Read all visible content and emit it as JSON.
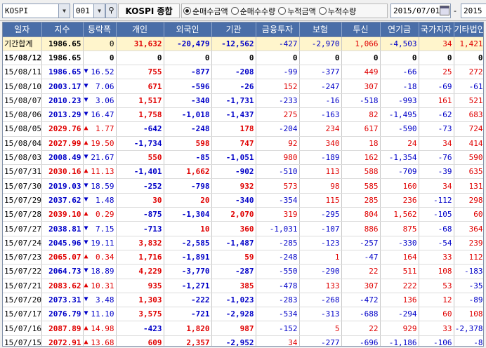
{
  "toolbar": {
    "market_combo": "KOSPI",
    "code_combo": "001",
    "market_name": "KOSPI 종합",
    "radios": [
      {
        "label": "순매수금액",
        "selected": true
      },
      {
        "label": "순매수수량",
        "selected": false
      },
      {
        "label": "누적금액",
        "selected": false
      },
      {
        "label": "누적수량",
        "selected": false
      }
    ],
    "date_from": "2015/07/01",
    "date_sep": "-",
    "date_to": "2015"
  },
  "columns": [
    "일자",
    "지수",
    "등락폭",
    "개인",
    "외국인",
    "기관",
    "금융투자",
    "보험",
    "투신",
    "연기금",
    "국가지자",
    "기타법인"
  ],
  "colors": {
    "up": "#e00000",
    "down": "#0000c8",
    "header_bg": "#4a6ea8",
    "summary_bg": "#fff5cc"
  },
  "rows": [
    {
      "date": "기간합계",
      "index": "1986.65",
      "dir": "",
      "chg": "0",
      "vals": [
        "31,632",
        "-20,479",
        "-12,562",
        "-427",
        "-2,970",
        "1,066",
        "-4,503",
        "34",
        "1,421"
      ],
      "summary": true
    },
    {
      "date": "15/08/12",
      "index": "1986.65",
      "dir": "",
      "chg": "0",
      "vals": [
        "0",
        "0",
        "0",
        "0",
        "0",
        "0",
        "0",
        "0",
        "0"
      ],
      "boldrow": true
    },
    {
      "date": "15/08/11",
      "index": "1986.65",
      "dir": "dn",
      "chg": "16.52",
      "vals": [
        "755",
        "-877",
        "-208",
        "-99",
        "-377",
        "449",
        "-66",
        "25",
        "272"
      ]
    },
    {
      "date": "15/08/10",
      "index": "2003.17",
      "dir": "dn",
      "chg": "7.06",
      "vals": [
        "671",
        "-596",
        "-26",
        "152",
        "-247",
        "307",
        "-18",
        "-69",
        "-61"
      ]
    },
    {
      "date": "15/08/07",
      "index": "2010.23",
      "dir": "dn",
      "chg": "3.06",
      "vals": [
        "1,517",
        "-340",
        "-1,731",
        "-233",
        "-16",
        "-518",
        "-993",
        "161",
        "521"
      ]
    },
    {
      "date": "15/08/06",
      "index": "2013.29",
      "dir": "dn",
      "chg": "16.47",
      "vals": [
        "1,758",
        "-1,018",
        "-1,437",
        "275",
        "-163",
        "82",
        "-1,495",
        "-62",
        "683"
      ]
    },
    {
      "date": "15/08/05",
      "index": "2029.76",
      "dir": "up",
      "chg": "1.77",
      "vals": [
        "-642",
        "-248",
        "178",
        "-204",
        "234",
        "617",
        "-590",
        "-73",
        "724"
      ]
    },
    {
      "date": "15/08/04",
      "index": "2027.99",
      "dir": "up",
      "chg": "19.50",
      "vals": [
        "-1,734",
        "598",
        "747",
        "92",
        "340",
        "18",
        "24",
        "34",
        "414"
      ]
    },
    {
      "date": "15/08/03",
      "index": "2008.49",
      "dir": "dn",
      "chg": "21.67",
      "vals": [
        "550",
        "-85",
        "-1,051",
        "980",
        "-189",
        "162",
        "-1,354",
        "-76",
        "590"
      ]
    },
    {
      "date": "15/07/31",
      "index": "2030.16",
      "dir": "up",
      "chg": "11.13",
      "vals": [
        "-1,401",
        "1,662",
        "-902",
        "-510",
        "113",
        "588",
        "-709",
        "-39",
        "635"
      ]
    },
    {
      "date": "15/07/30",
      "index": "2019.03",
      "dir": "dn",
      "chg": "18.59",
      "vals": [
        "-252",
        "-798",
        "932",
        "573",
        "98",
        "585",
        "160",
        "34",
        "131"
      ]
    },
    {
      "date": "15/07/29",
      "index": "2037.62",
      "dir": "dn",
      "chg": "1.48",
      "vals": [
        "30",
        "20",
        "-340",
        "-354",
        "115",
        "285",
        "236",
        "-112",
        "298"
      ]
    },
    {
      "date": "15/07/28",
      "index": "2039.10",
      "dir": "up",
      "chg": "0.29",
      "vals": [
        "-875",
        "-1,304",
        "2,070",
        "319",
        "-295",
        "804",
        "1,562",
        "-105",
        "60"
      ]
    },
    {
      "date": "15/07/27",
      "index": "2038.81",
      "dir": "dn",
      "chg": "7.15",
      "vals": [
        "-713",
        "10",
        "360",
        "-1,031",
        "-107",
        "886",
        "875",
        "-68",
        "364"
      ]
    },
    {
      "date": "15/07/24",
      "index": "2045.96",
      "dir": "dn",
      "chg": "19.11",
      "vals": [
        "3,832",
        "-2,585",
        "-1,487",
        "-285",
        "-123",
        "-257",
        "-330",
        "-54",
        "239"
      ]
    },
    {
      "date": "15/07/23",
      "index": "2065.07",
      "dir": "up",
      "chg": "0.34",
      "vals": [
        "1,716",
        "-1,891",
        "59",
        "-248",
        "1",
        "-47",
        "164",
        "33",
        "112"
      ]
    },
    {
      "date": "15/07/22",
      "index": "2064.73",
      "dir": "dn",
      "chg": "18.89",
      "vals": [
        "4,229",
        "-3,770",
        "-287",
        "-550",
        "-290",
        "22",
        "511",
        "108",
        "-183"
      ]
    },
    {
      "date": "15/07/21",
      "index": "2083.62",
      "dir": "up",
      "chg": "10.31",
      "vals": [
        "935",
        "-1,271",
        "385",
        "-478",
        "133",
        "307",
        "222",
        "53",
        "-35"
      ]
    },
    {
      "date": "15/07/20",
      "index": "2073.31",
      "dir": "dn",
      "chg": "3.48",
      "vals": [
        "1,303",
        "-222",
        "-1,023",
        "-283",
        "-268",
        "-472",
        "136",
        "12",
        "-89"
      ]
    },
    {
      "date": "15/07/17",
      "index": "2076.79",
      "dir": "dn",
      "chg": "11.10",
      "vals": [
        "3,575",
        "-721",
        "-2,928",
        "-534",
        "-313",
        "-688",
        "-294",
        "60",
        "108"
      ]
    },
    {
      "date": "15/07/16",
      "index": "2087.89",
      "dir": "up",
      "chg": "14.98",
      "vals": [
        "-423",
        "1,820",
        "987",
        "-152",
        "5",
        "22",
        "929",
        "33",
        "-2,378"
      ]
    },
    {
      "date": "15/07/15",
      "index": "2072.91",
      "dir": "up",
      "chg": "13.68",
      "vals": [
        "609",
        "2,357",
        "-2,952",
        "34",
        "-277",
        "-696",
        "-1,186",
        "-106",
        "-8"
      ]
    }
  ]
}
